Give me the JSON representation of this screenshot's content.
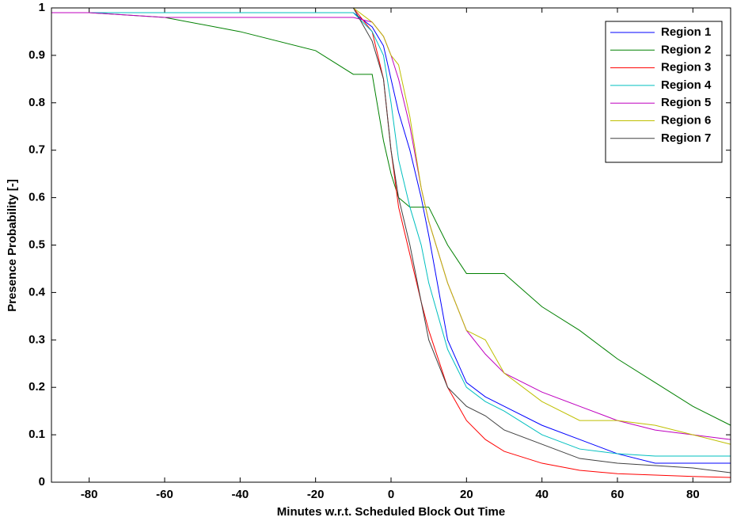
{
  "chart_data": {
    "type": "line",
    "x_label": "Minutes w.r.t. Scheduled Block Out Time",
    "y_label": "Presence Probability [-]",
    "x": [
      -90,
      -80,
      -60,
      -40,
      -20,
      -10,
      -5,
      -2,
      0,
      2,
      5,
      8,
      10,
      15,
      20,
      25,
      30,
      40,
      50,
      60,
      70,
      80,
      90
    ],
    "xlim": [
      -90,
      90
    ],
    "xticks": [
      -80,
      -60,
      -40,
      -20,
      0,
      20,
      40,
      60,
      80
    ],
    "ylim": [
      0,
      1
    ],
    "yticks": [
      0,
      0.1,
      0.2,
      0.3,
      0.4,
      0.5,
      0.6,
      0.7,
      0.8,
      0.9,
      1
    ],
    "legend": "top-right",
    "series": [
      {
        "name": "Region 1",
        "color": "#0000ff",
        "values": [
          0.99,
          0.99,
          0.99,
          0.99,
          0.99,
          0.99,
          0.96,
          0.92,
          0.85,
          0.78,
          0.7,
          0.6,
          0.52,
          0.3,
          0.21,
          0.18,
          0.16,
          0.12,
          0.09,
          0.06,
          0.04,
          0.04,
          0.04
        ]
      },
      {
        "name": "Region 2",
        "color": "#008000",
        "values": [
          0.99,
          0.99,
          0.98,
          0.95,
          0.91,
          0.86,
          0.86,
          0.72,
          0.65,
          0.6,
          0.58,
          0.58,
          0.58,
          0.5,
          0.44,
          0.44,
          0.44,
          0.37,
          0.32,
          0.26,
          0.21,
          0.16,
          0.12
        ]
      },
      {
        "name": "Region 3",
        "color": "#ff0000",
        "values": [
          1,
          1,
          1,
          1,
          1,
          1,
          0.95,
          0.85,
          0.7,
          0.58,
          0.48,
          0.38,
          0.32,
          0.2,
          0.13,
          0.09,
          0.065,
          0.04,
          0.025,
          0.018,
          0.015,
          0.012,
          0.01
        ]
      },
      {
        "name": "Region 4",
        "color": "#00bfbf",
        "values": [
          0.99,
          0.99,
          0.99,
          0.99,
          0.99,
          0.99,
          0.95,
          0.9,
          0.8,
          0.68,
          0.58,
          0.5,
          0.42,
          0.28,
          0.2,
          0.17,
          0.15,
          0.1,
          0.07,
          0.06,
          0.055,
          0.055,
          0.055
        ]
      },
      {
        "name": "Region 5",
        "color": "#bf00bf",
        "values": [
          0.99,
          0.99,
          0.98,
          0.98,
          0.98,
          0.98,
          0.97,
          0.94,
          0.9,
          0.85,
          0.75,
          0.62,
          0.55,
          0.42,
          0.32,
          0.27,
          0.23,
          0.19,
          0.16,
          0.13,
          0.11,
          0.1,
          0.09
        ]
      },
      {
        "name": "Region 6",
        "color": "#bfbf00",
        "values": [
          1,
          1,
          1,
          1,
          1,
          1,
          0.97,
          0.94,
          0.9,
          0.88,
          0.77,
          0.62,
          0.55,
          0.42,
          0.32,
          0.3,
          0.23,
          0.17,
          0.13,
          0.13,
          0.12,
          0.1,
          0.08
        ]
      },
      {
        "name": "Region 7",
        "color": "#404040",
        "values": [
          1,
          1,
          1,
          1,
          1,
          1,
          0.93,
          0.85,
          0.7,
          0.6,
          0.5,
          0.38,
          0.3,
          0.2,
          0.16,
          0.14,
          0.11,
          0.08,
          0.05,
          0.04,
          0.035,
          0.03,
          0.02
        ]
      }
    ]
  }
}
